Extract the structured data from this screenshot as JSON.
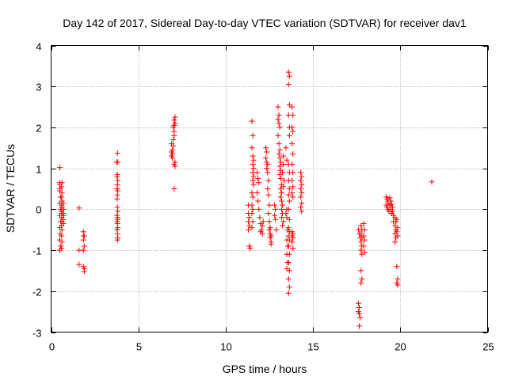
{
  "chart_data": {
    "type": "scatter",
    "title": "Day 142 of 2017, Sidereal Day-to-day VTEC variation (SDTVAR) for receiver dav1",
    "xlabel": "GPS time / hours",
    "ylabel": "SDTVAR / TECUs",
    "xlim": [
      0,
      25
    ],
    "ylim": [
      -3,
      4
    ],
    "xticks": [
      0,
      5,
      10,
      15,
      20,
      25
    ],
    "yticks": [
      -3,
      -2,
      -1,
      0,
      1,
      2,
      3,
      4
    ],
    "grid": true,
    "marker": "+",
    "marker_color": "#ff0000",
    "series": [
      {
        "name": "dav1",
        "points": [
          [
            0.5,
            1.02
          ],
          [
            0.5,
            0.65
          ],
          [
            0.5,
            0.6
          ],
          [
            0.52,
            0.5
          ],
          [
            0.5,
            0.45
          ],
          [
            0.55,
            0.3
          ],
          [
            0.5,
            0.15
          ],
          [
            0.55,
            0.0
          ],
          [
            0.5,
            -0.15
          ],
          [
            0.55,
            -0.3
          ],
          [
            0.5,
            -0.45
          ],
          [
            0.52,
            -0.6
          ],
          [
            0.5,
            -0.75
          ],
          [
            0.55,
            -0.9
          ],
          [
            0.5,
            -1.0
          ],
          [
            0.62,
            0.65
          ],
          [
            0.6,
            0.55
          ],
          [
            0.62,
            0.4
          ],
          [
            0.6,
            0.3
          ],
          [
            0.62,
            0.2
          ],
          [
            0.6,
            0.1
          ],
          [
            0.62,
            0.05
          ],
          [
            0.6,
            -0.05
          ],
          [
            0.62,
            -0.1
          ],
          [
            0.6,
            -0.2
          ],
          [
            0.62,
            -0.3
          ],
          [
            0.6,
            -0.4
          ],
          [
            0.62,
            -0.5
          ],
          [
            0.6,
            -0.65
          ],
          [
            0.62,
            -0.8
          ],
          [
            0.6,
            -0.95
          ],
          [
            0.7,
            0.15
          ],
          [
            0.72,
            0.0
          ],
          [
            0.7,
            -0.1
          ],
          [
            0.72,
            -0.15
          ],
          [
            0.7,
            -0.25
          ],
          [
            0.72,
            -0.35
          ],
          [
            1.6,
            0.03
          ],
          [
            1.6,
            -1.0
          ],
          [
            1.6,
            -1.35
          ],
          [
            1.85,
            -0.55
          ],
          [
            1.85,
            -0.65
          ],
          [
            1.9,
            -0.65
          ],
          [
            1.85,
            -0.75
          ],
          [
            1.9,
            -0.9
          ],
          [
            1.85,
            -1.0
          ],
          [
            1.85,
            -1.4
          ],
          [
            1.9,
            -1.45
          ],
          [
            1.9,
            -1.52
          ],
          [
            3.8,
            1.37
          ],
          [
            3.75,
            1.15
          ],
          [
            3.82,
            1.15
          ],
          [
            3.8,
            0.85
          ],
          [
            3.78,
            0.8
          ],
          [
            3.82,
            0.7
          ],
          [
            3.8,
            0.6
          ],
          [
            3.78,
            0.5
          ],
          [
            3.82,
            0.45
          ],
          [
            3.8,
            0.35
          ],
          [
            3.78,
            0.25
          ],
          [
            3.8,
            0.05
          ],
          [
            3.82,
            -0.05
          ],
          [
            3.78,
            -0.15
          ],
          [
            3.8,
            -0.2
          ],
          [
            3.82,
            -0.25
          ],
          [
            3.78,
            -0.3
          ],
          [
            3.8,
            -0.35
          ],
          [
            3.82,
            -0.45
          ],
          [
            3.78,
            -0.5
          ],
          [
            3.8,
            -0.6
          ],
          [
            3.82,
            -0.7
          ],
          [
            3.8,
            -0.75
          ],
          [
            6.9,
            1.6
          ],
          [
            6.95,
            1.45
          ],
          [
            6.9,
            1.4
          ],
          [
            6.95,
            1.35
          ],
          [
            6.9,
            1.3
          ],
          [
            6.95,
            1.25
          ],
          [
            7.0,
            1.7
          ],
          [
            7.0,
            1.55
          ],
          [
            7.05,
            1.8
          ],
          [
            7.05,
            1.9
          ],
          [
            7.0,
            2.0
          ],
          [
            7.05,
            2.05
          ],
          [
            7.1,
            2.1
          ],
          [
            7.05,
            2.18
          ],
          [
            7.1,
            2.25
          ],
          [
            7.1,
            1.15
          ],
          [
            7.05,
            1.1
          ],
          [
            7.1,
            1.05
          ],
          [
            7.05,
            0.5
          ],
          [
            11.3,
            0.1
          ],
          [
            11.3,
            -0.1
          ],
          [
            11.35,
            -0.2
          ],
          [
            11.3,
            -0.3
          ],
          [
            11.35,
            -0.4
          ],
          [
            11.3,
            -0.5
          ],
          [
            11.35,
            -0.9
          ],
          [
            11.4,
            -0.95
          ],
          [
            11.5,
            2.15
          ],
          [
            11.55,
            1.8
          ],
          [
            11.5,
            1.5
          ],
          [
            11.55,
            1.3
          ],
          [
            11.6,
            1.2
          ],
          [
            11.55,
            1.1
          ],
          [
            11.6,
            1.0
          ],
          [
            11.55,
            0.9
          ],
          [
            11.6,
            0.8
          ],
          [
            11.55,
            0.7
          ],
          [
            11.6,
            0.6
          ],
          [
            11.5,
            0.4
          ],
          [
            11.55,
            0.3
          ],
          [
            11.5,
            0.1
          ],
          [
            11.55,
            0.0
          ],
          [
            11.5,
            -0.1
          ],
          [
            11.55,
            -0.3
          ],
          [
            11.5,
            -0.45
          ],
          [
            11.8,
            0.9
          ],
          [
            11.85,
            0.75
          ],
          [
            11.9,
            0.65
          ],
          [
            11.8,
            0.4
          ],
          [
            11.85,
            0.2
          ],
          [
            11.9,
            0.0
          ],
          [
            11.95,
            -0.2
          ],
          [
            12.0,
            -0.35
          ],
          [
            12.05,
            -0.5
          ],
          [
            12.1,
            -0.4
          ],
          [
            12.15,
            -0.3
          ],
          [
            12.0,
            -0.55
          ],
          [
            12.1,
            -0.6
          ],
          [
            12.3,
            1.5
          ],
          [
            12.35,
            1.4
          ],
          [
            12.3,
            1.25
          ],
          [
            12.35,
            1.15
          ],
          [
            12.4,
            1.1
          ],
          [
            12.35,
            1.0
          ],
          [
            12.4,
            0.9
          ],
          [
            12.45,
            0.7
          ],
          [
            12.4,
            0.5
          ],
          [
            12.45,
            0.35
          ],
          [
            12.5,
            0.1
          ],
          [
            12.45,
            -0.1
          ],
          [
            12.5,
            -0.3
          ],
          [
            12.55,
            -0.45
          ],
          [
            12.5,
            -0.5
          ],
          [
            12.55,
            -0.6
          ],
          [
            12.6,
            -0.65
          ],
          [
            12.55,
            -0.7
          ],
          [
            12.6,
            -0.8
          ],
          [
            12.6,
            -0.85
          ],
          [
            12.8,
            0.1
          ],
          [
            12.85,
            0.0
          ],
          [
            12.8,
            -0.15
          ],
          [
            12.85,
            -0.25
          ],
          [
            12.9,
            -0.5
          ],
          [
            13.0,
            2.5
          ],
          [
            13.05,
            2.3
          ],
          [
            13.0,
            2.2
          ],
          [
            13.05,
            2.1
          ],
          [
            13.1,
            2.0
          ],
          [
            13.0,
            1.8
          ],
          [
            13.05,
            1.6
          ],
          [
            13.1,
            1.45
          ],
          [
            13.05,
            1.35
          ],
          [
            13.1,
            1.25
          ],
          [
            13.15,
            1.15
          ],
          [
            13.1,
            1.05
          ],
          [
            13.15,
            0.95
          ],
          [
            13.1,
            0.85
          ],
          [
            13.15,
            0.75
          ],
          [
            13.2,
            0.6
          ],
          [
            13.15,
            0.5
          ],
          [
            13.2,
            0.4
          ],
          [
            13.15,
            0.3
          ],
          [
            13.2,
            0.2
          ],
          [
            13.25,
            0.1
          ],
          [
            13.2,
            0.0
          ],
          [
            13.25,
            -0.1
          ],
          [
            13.2,
            -0.2
          ],
          [
            13.3,
            -0.3
          ],
          [
            13.25,
            -0.4
          ],
          [
            13.3,
            0.55
          ],
          [
            13.25,
            0.9
          ],
          [
            13.3,
            1.1
          ],
          [
            13.3,
            1.3
          ],
          [
            13.35,
            0.7
          ],
          [
            13.45,
            -0.1
          ],
          [
            13.5,
            -0.2
          ],
          [
            13.55,
            -0.5
          ],
          [
            13.5,
            -0.75
          ],
          [
            13.55,
            -0.9
          ],
          [
            13.5,
            -1.1
          ],
          [
            13.55,
            -1.3
          ],
          [
            13.5,
            -1.45
          ],
          [
            13.45,
            1.5
          ],
          [
            13.5,
            1.2
          ],
          [
            13.5,
            0.0
          ],
          [
            13.6,
            3.35
          ],
          [
            13.65,
            3.25
          ],
          [
            13.6,
            3.05
          ],
          [
            13.65,
            2.55
          ],
          [
            13.6,
            2.3
          ],
          [
            13.65,
            2.0
          ],
          [
            13.65,
            1.8
          ],
          [
            13.6,
            1.1
          ],
          [
            13.65,
            0.9
          ],
          [
            13.6,
            0.7
          ],
          [
            13.65,
            0.5
          ],
          [
            13.6,
            0.35
          ],
          [
            13.65,
            0.2
          ],
          [
            13.6,
            0.0
          ],
          [
            13.65,
            -0.25
          ],
          [
            13.6,
            -0.45
          ],
          [
            13.65,
            -0.55
          ],
          [
            13.6,
            -0.65
          ],
          [
            13.65,
            -0.75
          ],
          [
            13.6,
            -0.9
          ],
          [
            13.65,
            -1.1
          ],
          [
            13.6,
            -1.3
          ],
          [
            13.65,
            -1.5
          ],
          [
            13.6,
            -1.7
          ],
          [
            13.65,
            -1.9
          ],
          [
            13.6,
            -2.05
          ],
          [
            13.8,
            2.5
          ],
          [
            13.85,
            2.3
          ],
          [
            13.8,
            2.0
          ],
          [
            13.85,
            1.9
          ],
          [
            13.8,
            1.6
          ],
          [
            13.85,
            1.35
          ],
          [
            13.8,
            1.1
          ],
          [
            13.85,
            0.9
          ],
          [
            13.8,
            0.7
          ],
          [
            13.85,
            0.55
          ],
          [
            13.8,
            0.4
          ],
          [
            13.85,
            0.3
          ],
          [
            13.8,
            -0.55
          ],
          [
            13.85,
            -0.6
          ],
          [
            13.8,
            -0.65
          ],
          [
            13.85,
            -0.7
          ],
          [
            13.8,
            -0.8
          ],
          [
            13.85,
            -0.95
          ],
          [
            14.3,
            0.9
          ],
          [
            14.35,
            0.8
          ],
          [
            14.3,
            0.7
          ],
          [
            14.35,
            0.6
          ],
          [
            14.3,
            0.5
          ],
          [
            14.35,
            0.4
          ],
          [
            14.3,
            0.3
          ],
          [
            14.35,
            0.15
          ],
          [
            14.3,
            0.05
          ],
          [
            14.35,
            -0.05
          ],
          [
            17.6,
            -0.5
          ],
          [
            17.65,
            -0.6
          ],
          [
            17.7,
            -0.7
          ],
          [
            17.6,
            -2.3
          ],
          [
            17.65,
            -2.4
          ],
          [
            17.6,
            -2.5
          ],
          [
            17.65,
            -2.55
          ],
          [
            17.7,
            -2.65
          ],
          [
            17.65,
            -2.85
          ],
          [
            17.75,
            -0.4
          ],
          [
            17.8,
            -0.5
          ],
          [
            17.75,
            -0.6
          ],
          [
            17.8,
            -0.7
          ],
          [
            17.75,
            -0.8
          ],
          [
            17.8,
            -0.9
          ],
          [
            17.75,
            -1.0
          ],
          [
            17.8,
            -1.1
          ],
          [
            17.75,
            -1.5
          ],
          [
            17.8,
            -1.7
          ],
          [
            17.75,
            -1.8
          ],
          [
            17.9,
            -0.35
          ],
          [
            17.95,
            -0.5
          ],
          [
            17.9,
            -0.65
          ],
          [
            17.95,
            -0.75
          ],
          [
            17.9,
            -0.9
          ],
          [
            17.95,
            -1.05
          ],
          [
            19.2,
            0.3
          ],
          [
            19.25,
            0.25
          ],
          [
            19.3,
            0.2
          ],
          [
            19.2,
            0.1
          ],
          [
            19.25,
            0.05
          ],
          [
            19.3,
            0.0
          ],
          [
            19.35,
            -0.05
          ],
          [
            19.3,
            0.15
          ],
          [
            19.4,
            0.28
          ],
          [
            19.45,
            0.2
          ],
          [
            19.4,
            0.1
          ],
          [
            19.45,
            0.0
          ],
          [
            19.5,
            -0.1
          ],
          [
            19.55,
            0.05
          ],
          [
            19.5,
            0.12
          ],
          [
            19.6,
            -0.15
          ],
          [
            19.55,
            -0.05
          ],
          [
            19.6,
            -0.3
          ],
          [
            19.7,
            -0.2
          ],
          [
            19.75,
            -0.3
          ],
          [
            19.7,
            -0.4
          ],
          [
            19.75,
            -0.5
          ],
          [
            19.7,
            -0.6
          ],
          [
            19.75,
            -0.7
          ],
          [
            19.7,
            -0.8
          ],
          [
            19.8,
            -0.25
          ],
          [
            19.85,
            -0.45
          ],
          [
            19.8,
            -0.55
          ],
          [
            19.85,
            -0.65
          ],
          [
            19.8,
            -1.4
          ],
          [
            19.85,
            -1.7
          ],
          [
            19.8,
            -1.8
          ],
          [
            19.85,
            -1.85
          ],
          [
            21.8,
            0.67
          ]
        ]
      }
    ]
  }
}
